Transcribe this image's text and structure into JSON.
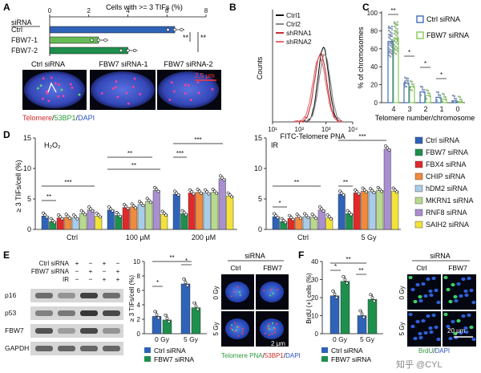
{
  "panels": {
    "A": {
      "letter": "A",
      "chart_title": "Cells with >= 3 TIFs (%)",
      "row_header": "siRNA",
      "ticks": [
        "0",
        "2",
        "4",
        "6",
        "8"
      ],
      "sig": [
        "**",
        "**"
      ],
      "image_labels": [
        "Ctrl siRNA",
        "FBW7 siRNA-1",
        "FBW7 siRNA-2"
      ],
      "scale_bar": "2.5 μm",
      "legend_telomere": "Telomere",
      "legend_53bp1": "53BP1",
      "legend_dapi": "DAPI",
      "slash": "/"
    },
    "B": {
      "letter": "B",
      "xlabel": "FITC-Telomere PNA",
      "ylabel": "Counts",
      "x_ticks": [
        "10¹",
        "10²",
        "10³",
        "10⁴"
      ]
    },
    "C": {
      "letter": "C",
      "ylabel": "% of chromosomes",
      "xlabel": "Telomere number/chromosome",
      "y_ticks": [
        "0",
        "20",
        "40",
        "60",
        "80",
        "100"
      ],
      "categories": [
        "4",
        "3",
        "2",
        "1",
        "0"
      ],
      "legend": [
        "Ctrl siRNA",
        "FBW7 siRNA"
      ],
      "sig": [
        "**",
        "*",
        "*",
        "*"
      ]
    },
    "D": {
      "letter": "D",
      "ylabel": "≥ 3 TIFs/cell (%)",
      "y_ticks": [
        "0",
        "5",
        "10",
        "15"
      ],
      "left_title": "H₂O₂",
      "right_title": "IR",
      "left_groups": [
        "Ctrl",
        "100 μM",
        "200 μM"
      ],
      "right_groups": [
        "Ctrl",
        "5 Gy"
      ],
      "sig_left": [
        "**",
        "***",
        "**",
        "**",
        "***",
        "***"
      ],
      "sig_right": [
        "*",
        "**",
        "**",
        "***"
      ],
      "legend": [
        {
          "label": "Ctrl siRNA",
          "color": "#2f63b8"
        },
        {
          "label": "FBW7 siRNA",
          "color": "#1f8f4e"
        },
        {
          "label": "FBX4 siRNA",
          "color": "#e02a2a"
        },
        {
          "label": "CHIP siRNA",
          "color": "#f08a3c"
        },
        {
          "label": "hDM2 siRNA",
          "color": "#a9cce8"
        },
        {
          "label": "MKRN1 siRNA",
          "color": "#b8d98e"
        },
        {
          "label": "RNF8 siRNA",
          "color": "#a98fd0"
        },
        {
          "label": "SAIH2 siRNA",
          "color": "#f2e23a"
        }
      ]
    },
    "E": {
      "letter": "E",
      "blot_conditions": [
        {
          "label": "Ctrl siRNA",
          "marks": [
            "+",
            "−",
            "+",
            "−"
          ]
        },
        {
          "label": "FBW7 siRNA",
          "marks": [
            "−",
            "+",
            "−",
            "+"
          ]
        },
        {
          "label": "IR",
          "marks": [
            "−",
            "−",
            "+",
            "+"
          ]
        }
      ],
      "blot_rows": [
        "p16",
        "p53",
        "FBW7",
        "GAPDH"
      ],
      "ylabel": "≥ 3 TIFs/cell (%)",
      "y_ticks": [
        "0",
        "2",
        "4",
        "6",
        "8",
        "10"
      ],
      "groups": [
        "0 Gy",
        "5 Gy"
      ],
      "sig": [
        "**",
        "*",
        "*"
      ],
      "legend": [
        "Ctrl siRNA",
        "FBW7 siRNA"
      ],
      "image_header": "siRNA",
      "image_cols": [
        "Ctrl",
        "FBW7"
      ],
      "image_rows": [
        "0 Gy",
        "5 Gy"
      ],
      "scale_bar": "2 μm",
      "stain_pna": "Telomere PNA",
      "stain_53bp1": "53BP1",
      "stain_dapi": "DAPI",
      "slash": "/"
    },
    "F": {
      "letter": "F",
      "ylabel": "BrdU (+) cells (%)",
      "y_ticks": [
        "0",
        "10",
        "20",
        "30",
        "40"
      ],
      "groups": [
        "0 Gy",
        "5 Gy"
      ],
      "sig": [
        "**",
        "*",
        "**"
      ],
      "legend": [
        "Ctrl siRNA",
        "FBW7 siRNA"
      ],
      "image_header": "siRNA",
      "image_cols": [
        "Ctrl",
        "FBW7"
      ],
      "image_rows": [
        "0 Gy",
        "5 Gy"
      ],
      "scale_bar": "20 μm",
      "stain_brdu": "BrdU",
      "stain_dapi": "DAPI",
      "slash": "/"
    }
  },
  "watermark": "知乎 @CYL",
  "chart_data": [
    {
      "panel": "A",
      "type": "bar",
      "orientation": "horizontal",
      "title": "Cells with >= 3 TIFs (%)",
      "categories": [
        "Ctrl",
        "FBW7-1",
        "FBW7-2"
      ],
      "values": [
        6.4,
        2.5,
        4.0
      ],
      "colors": [
        "#2f63b8",
        "#66bb55",
        "#1f8f4e"
      ],
      "xlim": [
        0,
        8
      ]
    },
    {
      "panel": "B",
      "type": "line",
      "xscale": "log",
      "xlabel": "FITC-Telomere PNA",
      "ylabel": "Counts",
      "series": [
        {
          "name": "Ctrl1",
          "color": "#111111",
          "peak": 2.9
        },
        {
          "name": "Ctrl2",
          "color": "#888888",
          "peak": 2.95
        },
        {
          "name": "shRNA1",
          "color": "#c0303a",
          "peak": 2.8
        },
        {
          "name": "shRNA2",
          "color": "#e06a70",
          "peak": 2.75
        }
      ],
      "xlim": [
        1,
        4
      ]
    },
    {
      "panel": "C",
      "type": "bar",
      "categories": [
        "4",
        "3",
        "2",
        "1",
        "0"
      ],
      "series": [
        {
          "name": "Ctrl siRNA",
          "values": [
            68,
            22,
            12,
            6,
            2
          ]
        },
        {
          "name": "FBW7 siRNA",
          "values": [
            72,
            18,
            8,
            4,
            1
          ]
        }
      ],
      "ylabel": "% of chromosomes",
      "xlabel": "Telomere number/chromosome",
      "ylim": [
        0,
        100
      ]
    },
    {
      "panel": "D-H2O2",
      "type": "bar",
      "title": "H₂O₂",
      "categories": [
        "Ctrl",
        "100 μM",
        "200 μM"
      ],
      "series": [
        {
          "name": "Ctrl siRNA",
          "values": [
            2.2,
            3.2,
            5.8
          ]
        },
        {
          "name": "FBW7 siRNA",
          "values": [
            1.3,
            2.3,
            2.6
          ]
        },
        {
          "name": "FBX4 siRNA",
          "values": [
            1.9,
            3.6,
            6.0
          ]
        },
        {
          "name": "CHIP siRNA",
          "values": [
            2.0,
            3.7,
            6.1
          ]
        },
        {
          "name": "hDM2 siRNA",
          "values": [
            1.9,
            4.1,
            6.0
          ]
        },
        {
          "name": "MKRN1 siRNA",
          "values": [
            2.6,
            4.6,
            6.1
          ]
        },
        {
          "name": "RNF8 siRNA",
          "values": [
            3.2,
            6.4,
            8.3
          ]
        },
        {
          "name": "SAIH2 siRNA",
          "values": [
            2.2,
            2.5,
            5.5
          ]
        }
      ],
      "ylabel": "≥ 3 TIFs/cell (%)",
      "ylim": [
        0,
        15
      ]
    },
    {
      "panel": "D-IR",
      "type": "bar",
      "title": "IR",
      "categories": [
        "Ctrl",
        "5 Gy"
      ],
      "series": [
        {
          "name": "Ctrl siRNA",
          "values": [
            2.1,
            5.8
          ]
        },
        {
          "name": "FBW7 siRNA",
          "values": [
            1.3,
            2.6
          ]
        },
        {
          "name": "FBX4 siRNA",
          "values": [
            1.8,
            6.0
          ]
        },
        {
          "name": "CHIP siRNA",
          "values": [
            2.0,
            6.3
          ]
        },
        {
          "name": "hDM2 siRNA",
          "values": [
            2.1,
            6.2
          ]
        },
        {
          "name": "MKRN1 siRNA",
          "values": [
            2.0,
            6.4
          ]
        },
        {
          "name": "RNF8 siRNA",
          "values": [
            3.2,
            13.2
          ]
        },
        {
          "name": "SAIH2 siRNA",
          "values": [
            1.9,
            6.3
          ]
        }
      ],
      "ylabel": "≥ 3 TIFs/cell (%)",
      "ylim": [
        0,
        15
      ]
    },
    {
      "panel": "E",
      "type": "bar",
      "categories": [
        "0 Gy",
        "5 Gy"
      ],
      "series": [
        {
          "name": "Ctrl siRNA",
          "values": [
            2.4,
            6.9
          ]
        },
        {
          "name": "FBW7 siRNA",
          "values": [
            1.9,
            3.6
          ]
        }
      ],
      "ylabel": "≥ 3 TIFs/cell (%)",
      "ylim": [
        0,
        10
      ]
    },
    {
      "panel": "F",
      "type": "bar",
      "categories": [
        "0 Gy",
        "5 Gy"
      ],
      "series": [
        {
          "name": "Ctrl siRNA",
          "values": [
            21,
            10
          ]
        },
        {
          "name": "FBW7 siRNA",
          "values": [
            29,
            19
          ]
        }
      ],
      "ylabel": "BrdU (+) cells (%)",
      "ylim": [
        0,
        40
      ]
    }
  ]
}
